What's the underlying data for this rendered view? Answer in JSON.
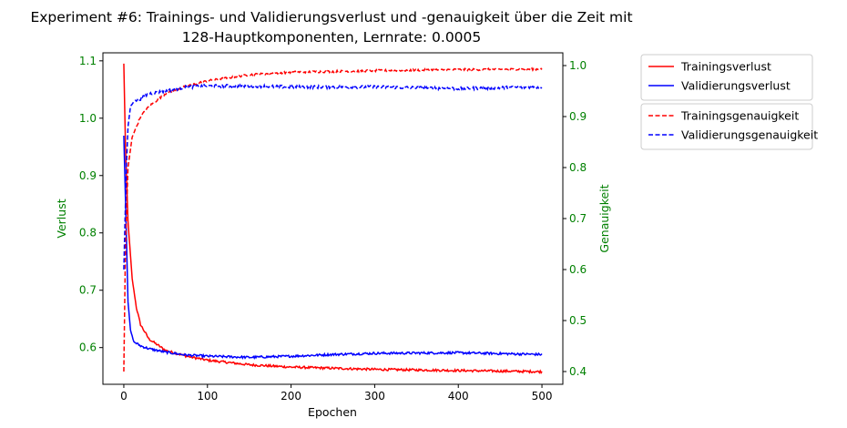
{
  "chart_data": {
    "type": "line",
    "title": "Experiment #6: Trainings- und Validierungsverlust und -genauigkeit über die Zeit mit",
    "subtitle": "128-Hauptkomponenten, Lernrate: 0.0005",
    "xlabel": "Epochen",
    "ylabel_left": "Verlust",
    "ylabel_right": "Genauigkeit",
    "xlim": [
      -25,
      525
    ],
    "ylim_left": [
      0.536,
      1.114
    ],
    "ylim_right": [
      0.375,
      1.025
    ],
    "x_ticks": [
      0,
      100,
      200,
      300,
      400,
      500
    ],
    "y_ticks_left": [
      0.6,
      0.7,
      0.8,
      0.9,
      1.0,
      1.1
    ],
    "y_ticks_right": [
      0.4,
      0.5,
      0.6,
      0.7,
      0.8,
      0.9,
      1.0
    ],
    "grid": false,
    "legend_loss_placement": "outside-top-right",
    "legend_acc_placement": "outside-right",
    "colors": {
      "train": "#ff0000",
      "val": "#0000ff",
      "axis_labels": "#008000",
      "axis": "#000000"
    },
    "series": [
      {
        "name": "Trainingsverlust",
        "axis": "left",
        "style": "solid",
        "color": "#ff0000",
        "x": [
          0,
          2,
          5,
          10,
          15,
          20,
          30,
          40,
          50,
          75,
          100,
          150,
          200,
          300,
          400,
          500
        ],
        "y": [
          1.095,
          0.95,
          0.82,
          0.72,
          0.67,
          0.64,
          0.615,
          0.605,
          0.595,
          0.585,
          0.578,
          0.57,
          0.566,
          0.562,
          0.56,
          0.558
        ],
        "noise": 0.002
      },
      {
        "name": "Validierungsverlust",
        "axis": "left",
        "style": "solid",
        "color": "#0000ff",
        "x": [
          0,
          3,
          5,
          8,
          12,
          20,
          30,
          50,
          75,
          100,
          150,
          200,
          250,
          300,
          400,
          500
        ],
        "y": [
          0.97,
          0.8,
          0.68,
          0.63,
          0.61,
          0.603,
          0.598,
          0.592,
          0.587,
          0.585,
          0.583,
          0.585,
          0.588,
          0.59,
          0.591,
          0.588
        ],
        "noise": 0.002
      },
      {
        "name": "Trainingsgenauigkeit",
        "axis": "right",
        "style": "dashed",
        "color": "#ff0000",
        "x": [
          0,
          2,
          5,
          10,
          20,
          30,
          50,
          75,
          100,
          150,
          200,
          300,
          400,
          500
        ],
        "y": [
          0.4,
          0.65,
          0.8,
          0.86,
          0.9,
          0.92,
          0.945,
          0.96,
          0.97,
          0.982,
          0.987,
          0.99,
          0.992,
          0.993
        ],
        "noise": 0.002
      },
      {
        "name": "Validierungsgenauigkeit",
        "axis": "right",
        "style": "dashed",
        "color": "#0000ff",
        "x": [
          0,
          3,
          5,
          8,
          12,
          20,
          30,
          50,
          75,
          100,
          150,
          200,
          300,
          400,
          500
        ],
        "y": [
          0.6,
          0.8,
          0.88,
          0.92,
          0.93,
          0.935,
          0.945,
          0.95,
          0.958,
          0.96,
          0.96,
          0.958,
          0.958,
          0.955,
          0.958
        ],
        "noise": 0.003
      }
    ]
  }
}
